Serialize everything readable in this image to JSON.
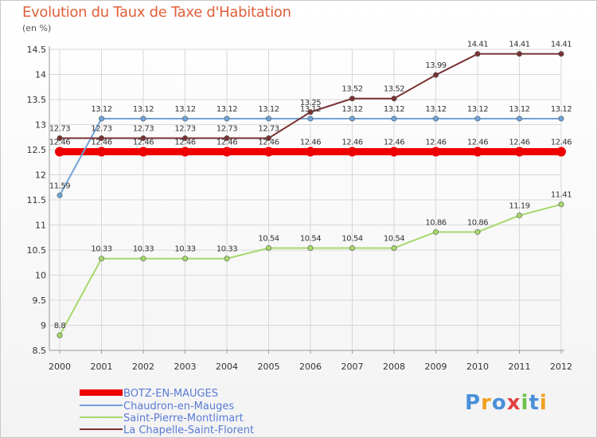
{
  "title": "Evolution du Taux de Taxe d'Habitation",
  "unit": "(en %)",
  "logo": "Proxiti",
  "colors": {
    "title": "#e0603a",
    "grid": "#d8d8d8",
    "axis": "#999999"
  },
  "chart_data": {
    "type": "line",
    "x": [
      "2000",
      "2001",
      "2002",
      "2003",
      "2004",
      "2005",
      "2006",
      "2007",
      "2008",
      "2009",
      "2010",
      "2011",
      "2012"
    ],
    "ylim": [
      8.5,
      14.5
    ],
    "yticks": [
      "8.5",
      "9",
      "9.5",
      "10",
      "10.5",
      "11",
      "11.5",
      "12",
      "12.5",
      "13",
      "13.5",
      "14",
      "14.5"
    ],
    "grid": true,
    "legend_position": "bottom-left",
    "series": [
      {
        "name": "BOTZ-EN-MAUGES",
        "color": "#ee0000",
        "width": 9,
        "values": [
          12.46,
          12.46,
          12.46,
          12.46,
          12.46,
          12.46,
          12.46,
          12.46,
          12.46,
          12.46,
          12.46,
          12.46,
          12.46
        ],
        "labels": [
          "12.46",
          "12.46",
          "12.46",
          "12.46",
          "12.46",
          "12.46",
          "12.46",
          "12.46",
          "12.46",
          "12.46",
          "12.46",
          "12.46",
          "12.46"
        ]
      },
      {
        "name": "Chaudron-en-Mauges",
        "color": "#6fa3d8",
        "width": 2,
        "values": [
          11.59,
          13.12,
          13.12,
          13.12,
          13.12,
          13.12,
          13.12,
          13.12,
          13.12,
          13.12,
          13.12,
          13.12,
          13.12
        ],
        "labels": [
          "11.59",
          "13.12",
          "13.12",
          "13.12",
          "13.12",
          "13.12",
          "13.12",
          "13.12",
          "13.12",
          "13.12",
          "13.12",
          "13.12",
          "13.12"
        ]
      },
      {
        "name": "Saint-Pierre-Montlimart",
        "color": "#a6d86b",
        "width": 2,
        "values": [
          8.8,
          10.33,
          10.33,
          10.33,
          10.33,
          10.54,
          10.54,
          10.54,
          10.54,
          10.86,
          10.86,
          11.19,
          11.41
        ],
        "labels": [
          "8.8",
          "10.33",
          "10.33",
          "10.33",
          "10.33",
          "10.54",
          "10.54",
          "10.54",
          "10.54",
          "10.86",
          "10.86",
          "11.19",
          "11.41"
        ]
      },
      {
        "name": "La Chapelle-Saint-Florent",
        "color": "#7a3232",
        "width": 2,
        "values": [
          12.73,
          12.73,
          12.73,
          12.73,
          12.73,
          12.73,
          13.25,
          13.52,
          13.52,
          13.99,
          14.41,
          14.41,
          14.41
        ],
        "labels": [
          "12.73",
          "12.73",
          "12.73",
          "12.73",
          "12.73",
          "12.73",
          "13.25",
          "13.52",
          "13.52",
          "13.99",
          "14.41",
          "14.41",
          "14.41"
        ]
      }
    ]
  }
}
